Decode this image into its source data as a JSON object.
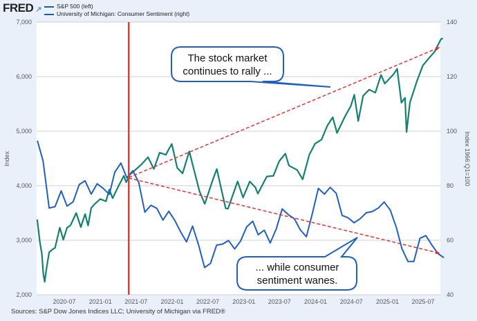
{
  "header": {
    "logo": "FRED",
    "legend": [
      {
        "label": "S&P 500 (left)",
        "color": "#14806f"
      },
      {
        "label": "University of Michigan: Consumer Sentiment (right)",
        "color": "#1e5fc0"
      }
    ]
  },
  "footer": {
    "source": "Sources: S&P Dow Jones Indices LLC; University of Michigan via FRED®"
  },
  "chart_data": {
    "type": "line",
    "title": "",
    "ylabel": "Index",
    "y2label": "Index 1966:Q1=100",
    "ylim": [
      2000,
      7000
    ],
    "y2lim": [
      40,
      140
    ],
    "yticks": [
      "2,000",
      "3,000",
      "4,000",
      "5,000",
      "6,000",
      "7,000"
    ],
    "y2ticks": [
      "40",
      "60",
      "80",
      "100",
      "120",
      "140"
    ],
    "xticks": [
      "2020-07",
      "2021-01",
      "2021-07",
      "2022-01",
      "2022-07",
      "2023-01",
      "2023-07",
      "2024-01",
      "2024-07",
      "2025-01",
      "2025-07"
    ],
    "grid": true,
    "legend_position": "top-left",
    "series": [
      {
        "name": "S&P 500 (left)",
        "axis": "left",
        "color": "#14806f",
        "x": [
          "2020-02-14",
          "2020-02-28",
          "2020-03-09",
          "2020-03-16",
          "2020-03-23",
          "2020-04-01",
          "2020-04-15",
          "2020-05-01",
          "2020-05-15",
          "2020-06-08",
          "2020-06-26",
          "2020-07-15",
          "2020-08-01",
          "2020-08-31",
          "2020-09-23",
          "2020-10-15",
          "2020-10-30",
          "2020-11-15",
          "2020-12-01",
          "2020-12-31",
          "2021-01-29",
          "2021-02-15",
          "2021-03-04",
          "2021-03-31",
          "2021-04-30",
          "2021-05-12",
          "2021-05-31",
          "2021-06-30",
          "2021-07-30",
          "2021-08-31",
          "2021-09-30",
          "2021-10-29",
          "2021-11-30",
          "2021-12-15",
          "2021-12-30",
          "2022-01-27",
          "2022-02-23",
          "2022-03-29",
          "2022-04-15",
          "2022-05-20",
          "2022-06-16",
          "2022-07-29",
          "2022-08-16",
          "2022-09-30",
          "2022-10-12",
          "2022-11-30",
          "2022-12-28",
          "2023-01-31",
          "2023-02-28",
          "2023-03-13",
          "2023-04-28",
          "2023-05-31",
          "2023-06-30",
          "2023-07-31",
          "2023-08-18",
          "2023-09-29",
          "2023-10-27",
          "2023-11-30",
          "2023-12-29",
          "2024-01-31",
          "2024-02-29",
          "2024-03-28",
          "2024-04-19",
          "2024-05-31",
          "2024-06-28",
          "2024-07-16",
          "2024-08-05",
          "2024-08-30",
          "2024-09-30",
          "2024-10-31",
          "2024-11-29",
          "2024-12-18",
          "2025-01-31",
          "2025-02-19",
          "2025-03-13",
          "2025-03-31",
          "2025-04-08",
          "2025-04-25",
          "2025-05-30",
          "2025-06-30",
          "2025-07-31",
          "2025-08-29",
          "2025-09-30",
          "2025-10-10"
        ],
        "values": [
          3380,
          2954,
          2750,
          2386,
          2237,
          2470,
          2780,
          2830,
          2860,
          3230,
          3010,
          3230,
          3270,
          3500,
          3240,
          3480,
          3270,
          3590,
          3660,
          3756,
          3714,
          3930,
          3770,
          3973,
          4181,
          4063,
          4204,
          4298,
          4395,
          4523,
          4308,
          4605,
          4567,
          4670,
          4766,
          4326,
          4225,
          4631,
          4390,
          3900,
          3666,
          4130,
          4305,
          3586,
          3577,
          4080,
          3783,
          4077,
          3970,
          3855,
          4169,
          4180,
          4450,
          4589,
          4370,
          4288,
          4117,
          4568,
          4770,
          4846,
          5096,
          5254,
          4967,
          5278,
          5460,
          5667,
          5186,
          5648,
          5762,
          5705,
          6032,
          5872,
          6041,
          6144,
          5521,
          5612,
          4983,
          5525,
          5912,
          6205,
          6339,
          6460,
          6688,
          6700
        ]
      },
      {
        "name": "University of Michigan: Consumer Sentiment (right)",
        "axis": "right",
        "color": "#1e5fc0",
        "x": [
          "2020-02",
          "2020-03",
          "2020-04",
          "2020-05",
          "2020-06",
          "2020-07",
          "2020-08",
          "2020-09",
          "2020-10",
          "2020-11",
          "2020-12",
          "2021-01",
          "2021-02",
          "2021-03",
          "2021-04",
          "2021-05",
          "2021-06",
          "2021-07",
          "2021-08",
          "2021-09",
          "2021-10",
          "2021-11",
          "2021-12",
          "2022-01",
          "2022-02",
          "2022-03",
          "2022-04",
          "2022-05",
          "2022-06",
          "2022-07",
          "2022-08",
          "2022-09",
          "2022-10",
          "2022-11",
          "2022-12",
          "2023-01",
          "2023-02",
          "2023-03",
          "2023-04",
          "2023-05",
          "2023-06",
          "2023-07",
          "2023-08",
          "2023-09",
          "2023-10",
          "2023-11",
          "2023-12",
          "2024-01",
          "2024-02",
          "2024-03",
          "2024-04",
          "2024-05",
          "2024-06",
          "2024-07",
          "2024-08",
          "2024-09",
          "2024-10",
          "2024-11",
          "2024-12",
          "2025-01",
          "2025-02",
          "2025-03",
          "2025-04",
          "2025-05",
          "2025-06",
          "2025-07",
          "2025-08",
          "2025-09",
          "2025-10"
        ],
        "values": [
          96.5,
          89.1,
          71.8,
          72.3,
          78.1,
          72.5,
          74.1,
          80.4,
          81.8,
          76.9,
          80.7,
          79.0,
          76.8,
          84.9,
          88.3,
          82.9,
          85.5,
          81.2,
          70.3,
          72.8,
          71.7,
          67.4,
          70.6,
          67.2,
          62.8,
          59.4,
          65.2,
          58.4,
          50.0,
          51.5,
          58.2,
          58.6,
          59.9,
          56.8,
          59.7,
          64.9,
          67.0,
          62.0,
          63.7,
          59.0,
          64.2,
          71.5,
          69.4,
          67.9,
          63.8,
          61.3,
          69.7,
          79.0,
          76.9,
          79.4,
          77.2,
          69.1,
          68.2,
          66.4,
          67.9,
          70.1,
          70.5,
          71.8,
          74.0,
          71.1,
          64.7,
          57.0,
          52.2,
          52.2,
          60.7,
          61.7,
          58.2,
          55.1,
          53.6
        ]
      }
    ],
    "annotations": {
      "vertical_line": {
        "x": "2021-05-25",
        "color": "#e53935"
      },
      "trend_up": {
        "from": [
          "2021-05-25",
          4150
        ],
        "to": [
          "2025-09-25",
          6540
        ],
        "axis": "left",
        "color": "#d33"
      },
      "trend_down": {
        "from": [
          "2021-05-25",
          82.8
        ],
        "to": [
          "2025-09-25",
          55.2
        ],
        "axis": "right",
        "color": "#d33"
      },
      "callout_top": [
        "The stock market",
        "continues to rally ..."
      ],
      "callout_bottom": [
        "... while consumer",
        "sentiment wanes."
      ]
    }
  }
}
